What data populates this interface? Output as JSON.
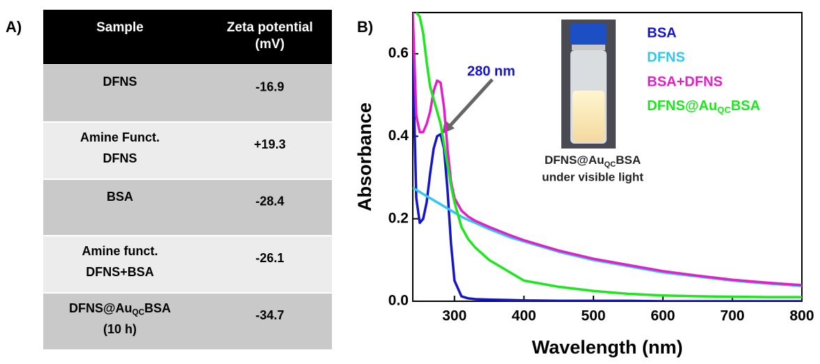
{
  "panel_labels": [
    "A)",
    "B)"
  ],
  "table": {
    "header": [
      [
        "Sample"
      ],
      [
        "Zeta potential",
        "(mV)"
      ]
    ],
    "rows": [
      [
        [
          "DFNS"
        ],
        [
          "-16.9"
        ]
      ],
      [
        [
          "Amine Funct.",
          "DFNS"
        ],
        [
          "+19.3"
        ]
      ],
      [
        [
          "BSA"
        ],
        [
          "-28.4"
        ]
      ],
      [
        [
          "Amine funct.",
          "DFNS+BSA"
        ],
        [
          "-26.1"
        ]
      ],
      [
        [
          [
            "DFNS@Au",
            "QC",
            "BSA"
          ],
          "(10 h)"
        ],
        [
          "-34.7"
        ]
      ]
    ]
  },
  "chart_data": {
    "type": "line",
    "x_label": "Wavelength (nm)",
    "y_label": "Absorbance",
    "annotation": "280 nm",
    "inset_caption": [
      [
        "DFNS@Au",
        "QC",
        "BSA"
      ],
      "under visible light"
    ],
    "xlim": [
      240,
      800
    ],
    "ylim": [
      0,
      0.7
    ],
    "xticks": [
      300,
      400,
      500,
      600,
      700,
      800
    ],
    "yticks": [
      {
        "value": 0,
        "label": "0.0"
      },
      {
        "value": 0.2,
        "label": "0.2"
      },
      {
        "value": 0.4,
        "label": "0.4"
      },
      {
        "value": 0.6,
        "label": "0.6"
      }
    ],
    "legend": "upper right",
    "x": [
      240,
      245,
      250,
      255,
      260,
      265,
      270,
      275,
      280,
      285,
      290,
      295,
      300,
      310,
      320,
      330,
      350,
      380,
      400,
      450,
      500,
      550,
      600,
      650,
      700,
      750,
      800
    ],
    "series": [
      {
        "name": "BSA",
        "color": "#1414c8",
        "values": [
          0.6,
          0.25,
          0.19,
          0.2,
          0.24,
          0.31,
          0.37,
          0.4,
          0.405,
          0.37,
          0.27,
          0.14,
          0.05,
          0.012,
          0.007,
          0.005,
          0.004,
          0.003,
          0.002,
          0.001,
          0.001,
          0.001,
          0,
          0,
          0,
          0,
          0
        ]
      },
      {
        "name": "DFNS",
        "color": "#33c6f0",
        "values": [
          0.275,
          0.27,
          0.265,
          0.26,
          0.255,
          0.25,
          0.245,
          0.24,
          0.235,
          0.23,
          0.225,
          0.22,
          0.215,
          0.205,
          0.197,
          0.19,
          0.175,
          0.155,
          0.145,
          0.12,
          0.1,
          0.085,
          0.07,
          0.06,
          0.05,
          0.043,
          0.037
        ]
      },
      {
        "name": "BSA+DFNS",
        "color": "#e41ec6",
        "values": [
          0.7,
          0.45,
          0.41,
          0.41,
          0.43,
          0.46,
          0.51,
          0.535,
          0.53,
          0.47,
          0.37,
          0.29,
          0.25,
          0.22,
          0.205,
          0.195,
          0.18,
          0.16,
          0.148,
          0.123,
          0.103,
          0.088,
          0.073,
          0.062,
          0.052,
          0.045,
          0.039
        ]
      },
      {
        "name": [
          "DFNS@Au",
          "QC",
          "BSA"
        ],
        "color": "#1ee61e",
        "values": [
          null,
          0.7,
          0.69,
          0.65,
          0.58,
          0.52,
          0.49,
          0.46,
          0.43,
          0.38,
          0.33,
          0.28,
          0.24,
          0.18,
          0.15,
          0.13,
          0.1,
          0.07,
          0.05,
          0.035,
          0.025,
          0.018,
          0.014,
          0.012,
          0.011,
          0.01,
          0.01
        ]
      }
    ]
  }
}
